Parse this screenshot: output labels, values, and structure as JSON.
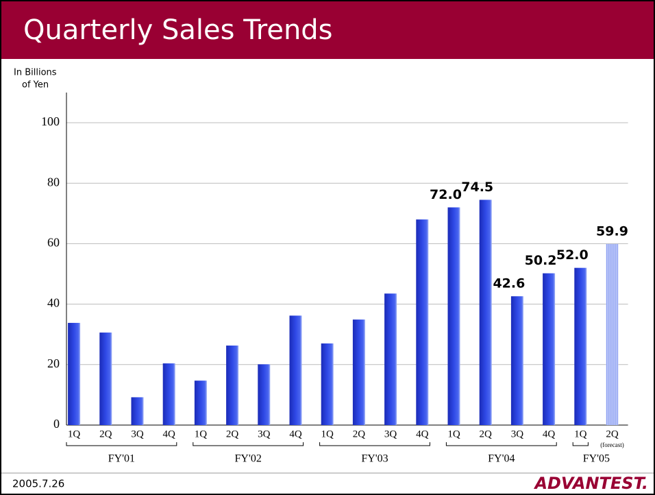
{
  "chart_data": {
    "type": "bar",
    "title": "Quarterly Sales Trends",
    "y_axis_label": [
      "In Billions",
      "of Yen"
    ],
    "categories": [
      "1Q",
      "2Q",
      "3Q",
      "4Q",
      "1Q",
      "2Q",
      "3Q",
      "4Q",
      "1Q",
      "2Q",
      "3Q",
      "4Q",
      "1Q",
      "2Q",
      "3Q",
      "4Q",
      "1Q",
      "2Q"
    ],
    "groups": [
      "FY'01",
      "FY'02",
      "FY'03",
      "FY'04",
      "FY'05"
    ],
    "forecast_label": "(forecast)",
    "values": [
      33.8,
      30.6,
      9.2,
      20.4,
      14.7,
      26.3,
      20.1,
      36.2,
      27.0,
      34.9,
      43.5,
      68.0,
      72.0,
      74.5,
      42.6,
      50.2,
      52.0,
      59.9
    ],
    "value_labels": [
      null,
      null,
      null,
      null,
      null,
      null,
      null,
      null,
      null,
      null,
      null,
      null,
      "72.0",
      "74.5",
      "42.6",
      "50.2",
      "52.0",
      "59.9"
    ],
    "color": "#2438d8",
    "ylim": [
      0,
      100
    ],
    "yticks": [
      0,
      20,
      40,
      60,
      80,
      100
    ],
    "grid": true
  },
  "footer": {
    "date": "2005.7.26",
    "logo": "ADVANTEST."
  }
}
